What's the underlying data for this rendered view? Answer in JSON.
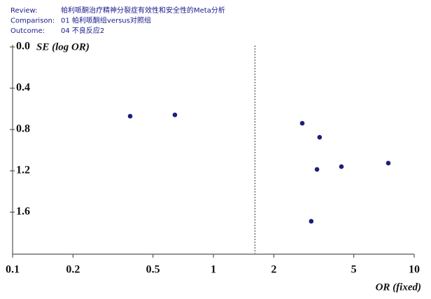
{
  "chart_data": {
    "type": "scatter",
    "header": [
      {
        "label": "Review:",
        "value": "帕利哌酮治疗精神分裂症有效性和安全性的Meta分析"
      },
      {
        "label": "Comparison:",
        "value": "01 帕利哌酮组versus对照组"
      },
      {
        "label": "Outcome:",
        "value": "04 不良反应2"
      }
    ],
    "x_label": "OR (fixed)",
    "y_label": "SE (log OR)",
    "x": [
      0.385,
      0.643,
      2.77,
      3.38,
      7.43,
      4.34,
      3.28,
      3.07
    ],
    "values": [
      0.671,
      0.658,
      0.739,
      0.875,
      1.125,
      1.159,
      1.186,
      1.688
    ],
    "color": "#1e1e7a",
    "x_log": true,
    "y_inverted": true,
    "xlim": [
      0.1,
      10
    ],
    "ylim": [
      0,
      2.0
    ],
    "xticks": [
      0.1,
      0.2,
      0.5,
      1,
      2,
      5,
      10
    ],
    "yticks": [
      {
        "value": 0,
        "label": "0.0"
      },
      0.4,
      0.8,
      1.2,
      1.6
    ],
    "reference_line": 1.61
  }
}
